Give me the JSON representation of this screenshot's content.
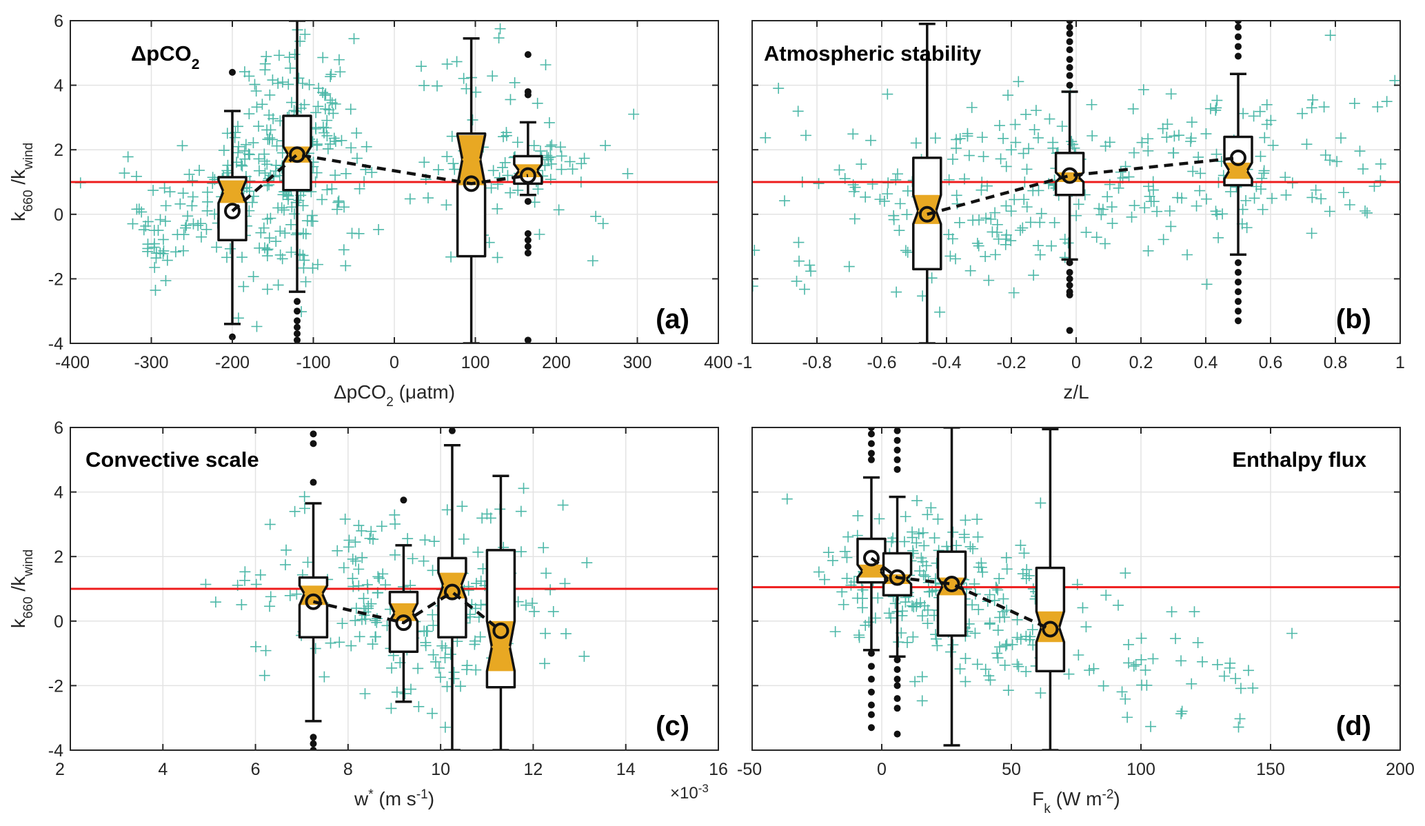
{
  "colors": {
    "scatter": "#4db8a8",
    "reference_line": "#ee1c1c",
    "box_fill": "#e8a823",
    "box_edge": "#111111",
    "grid": "#e3e3e3"
  },
  "chart_data": [
    {
      "type": "scatter+box",
      "panel": "a",
      "title": "ΔpCO",
      "title_sub": "2",
      "letter": "(a)",
      "xlabel": "ΔpCO",
      "xlabel_sub": "2",
      "xlabel_rest": " (μatm)",
      "ylabel": "k",
      "ylabel_sub": "660",
      "ylabel_mid": " /k",
      "ylabel_sub2": "wind",
      "xlim": [
        -400,
        400
      ],
      "ylim": [
        -4,
        6
      ],
      "xticks": [
        -400,
        -300,
        -200,
        -100,
        0,
        100,
        200,
        300,
        400
      ],
      "xtick_labels": [
        "-400",
        "-300",
        "-200",
        "-100",
        "0",
        "100",
        "200",
        "300",
        "400"
      ],
      "yticks": [
        -4,
        -2,
        0,
        2,
        4,
        6
      ],
      "ytick_labels": [
        "-4",
        "-2",
        "0",
        "2",
        "4",
        "6"
      ],
      "reference_y": 1,
      "boxes": [
        {
          "x": -200,
          "whisker_low": -3.4,
          "q1": -0.8,
          "median": 0.7,
          "q3": 1.15,
          "whisker_high": 3.2,
          "notch_low": 0.35,
          "notch_high": 1.05,
          "mean": 0.1,
          "outliers": [
            4.4,
            -3.8
          ]
        },
        {
          "x": -120,
          "whisker_low": -2.4,
          "q1": 0.75,
          "median": 1.85,
          "q3": 3.05,
          "whisker_high": 6.0,
          "notch_low": 1.6,
          "notch_high": 2.1,
          "mean": 1.85,
          "outliers": [
            -2.7,
            -3.0,
            -3.3,
            -3.5,
            -3.7,
            -3.9
          ]
        },
        {
          "x": 95,
          "whisker_low": -4.0,
          "q1": -1.3,
          "median": 1.7,
          "q3": 2.5,
          "whisker_high": 5.45,
          "notch_low": 0.9,
          "notch_high": 2.45,
          "mean": 0.95,
          "outliers": []
        },
        {
          "x": 165,
          "whisker_low": 0.6,
          "q1": 0.95,
          "median": 1.35,
          "q3": 1.8,
          "whisker_high": 2.85,
          "notch_low": 1.15,
          "notch_high": 1.55,
          "mean": 1.2,
          "outliers": [
            4.95,
            3.8,
            3.7,
            0.4,
            -0.6,
            -0.8,
            -1.0,
            -1.2,
            -3.9
          ]
        }
      ],
      "scatter_clusters": [
        {
          "cx": -195,
          "sx": 55,
          "cy": 0.5,
          "sy": 1.3,
          "n": 130
        },
        {
          "cx": -115,
          "sx": 38,
          "cy": 2.0,
          "sy": 1.6,
          "n": 170
        },
        {
          "cx": -300,
          "sx": 15,
          "cy": -0.4,
          "sy": 0.8,
          "n": 25
        },
        {
          "cx": 110,
          "sx": 45,
          "cy": 1.8,
          "sy": 1.8,
          "n": 60
        },
        {
          "cx": 180,
          "sx": 35,
          "cy": 1.3,
          "sy": 0.6,
          "n": 30
        },
        {
          "cx": 270,
          "sx": 20,
          "cy": 1.0,
          "sy": 1.2,
          "n": 6
        }
      ]
    },
    {
      "type": "scatter+box",
      "panel": "b",
      "title": "Atmospheric stability",
      "title_sub": "",
      "letter": "(b)",
      "xlabel": "z/L",
      "xlabel_sub": "",
      "xlabel_rest": "",
      "ylabel": "",
      "ylabel_sub": "",
      "ylabel_mid": "",
      "ylabel_sub2": "",
      "xlim": [
        -1,
        1
      ],
      "ylim": [
        -4,
        6
      ],
      "xticks": [
        -1,
        -0.8,
        -0.6,
        -0.4,
        -0.2,
        0,
        0.2,
        0.4,
        0.6,
        0.8,
        1
      ],
      "xtick_labels": [
        "-1",
        "-0.8",
        "-0.6",
        "-0.4",
        "-0.2",
        "0",
        "0.2",
        "0.4",
        "0.6",
        "0.8",
        "1"
      ],
      "yticks": [
        -4,
        -2,
        0,
        2,
        4,
        6
      ],
      "ytick_labels": [],
      "reference_y": 1,
      "boxes": [
        {
          "x": -0.46,
          "whisker_low": -4.0,
          "q1": -1.7,
          "median": 0.1,
          "q3": 1.75,
          "whisker_high": 5.9,
          "notch_low": -0.3,
          "notch_high": 0.6,
          "mean": 0.0,
          "outliers": []
        },
        {
          "x": -0.02,
          "whisker_low": -1.4,
          "q1": 0.6,
          "median": 1.15,
          "q3": 1.9,
          "whisker_high": 3.8,
          "notch_low": 1.0,
          "notch_high": 1.3,
          "mean": 1.2,
          "outliers": [
            6.0,
            5.8,
            5.6,
            5.35,
            5.1,
            4.8,
            4.55,
            4.3,
            4.0,
            -1.5,
            -1.8,
            -2.0,
            -2.2,
            -2.4,
            -2.5,
            -3.6
          ]
        },
        {
          "x": 0.5,
          "whisker_low": -1.25,
          "q1": 0.9,
          "median": 1.35,
          "q3": 2.4,
          "whisker_high": 4.35,
          "notch_low": 1.1,
          "notch_high": 1.6,
          "mean": 1.75,
          "outliers": [
            6.0,
            5.8,
            5.5,
            5.2,
            4.9,
            -1.5,
            -1.8,
            -2.1,
            -2.4,
            -2.7,
            -3.0,
            -3.3
          ]
        }
      ],
      "scatter_clusters": [
        {
          "cx": -0.35,
          "sx": 0.3,
          "cy": 0.6,
          "sy": 1.5,
          "n": 150
        },
        {
          "cx": 0.2,
          "sx": 0.3,
          "cy": 1.2,
          "sy": 1.3,
          "n": 120
        },
        {
          "cx": 0.75,
          "sx": 0.2,
          "cy": 2.0,
          "sy": 1.5,
          "n": 40
        }
      ]
    },
    {
      "type": "scatter+box",
      "panel": "c",
      "title": "Convective scale",
      "title_sub": "",
      "letter": "(c)",
      "xlabel": "w",
      "xlabel_sub": "",
      "xlabel_rest": " (m s",
      "xlabel_sup": "*",
      "ylabel": "k",
      "ylabel_sub": "660",
      "ylabel_mid": " /k",
      "ylabel_sub2": "wind",
      "xlim": [
        2,
        16
      ],
      "ylim": [
        -4,
        6
      ],
      "xticks": [
        2,
        4,
        6,
        8,
        10,
        12,
        14,
        16
      ],
      "xtick_labels": [
        "2",
        "4",
        "6",
        "8",
        "10",
        "12",
        "14",
        "16"
      ],
      "yticks": [
        -4,
        -2,
        0,
        2,
        4,
        6
      ],
      "ytick_labels": [
        "-4",
        "-2",
        "0",
        "2",
        "4",
        "6"
      ],
      "x_scale_note": "×10",
      "x_scale_exp": "-3",
      "reference_y": 1,
      "boxes": [
        {
          "x": 7.25,
          "whisker_low": -3.1,
          "q1": -0.5,
          "median": 0.85,
          "q3": 1.35,
          "whisker_high": 3.65,
          "notch_low": 0.5,
          "notch_high": 1.1,
          "mean": 0.6,
          "outliers": [
            5.8,
            5.5,
            4.3,
            -3.6,
            -3.8,
            -4.0
          ]
        },
        {
          "x": 9.2,
          "whisker_low": -2.5,
          "q1": -0.95,
          "median": 0.25,
          "q3": 0.9,
          "whisker_high": 2.35,
          "notch_low": 0.0,
          "notch_high": 0.55,
          "mean": -0.05,
          "outliers": [
            3.75
          ]
        },
        {
          "x": 10.25,
          "whisker_low": -4.0,
          "q1": -0.5,
          "median": 1.1,
          "q3": 1.95,
          "whisker_high": 5.45,
          "notch_low": 0.7,
          "notch_high": 1.5,
          "mean": 0.9,
          "outliers": [
            5.9
          ]
        },
        {
          "x": 11.3,
          "whisker_low": -4.0,
          "q1": -2.05,
          "median": -0.8,
          "q3": 2.2,
          "whisker_high": 4.5,
          "notch_low": -1.55,
          "notch_high": 0.0,
          "mean": -0.3,
          "outliers": []
        }
      ],
      "scatter_clusters": [
        {
          "cx": 9.8,
          "sx": 1.3,
          "cy": 0.4,
          "sy": 1.5,
          "n": 160
        },
        {
          "cx": 7.5,
          "sx": 1.0,
          "cy": 1.0,
          "sy": 1.6,
          "n": 40
        },
        {
          "cx": 12.0,
          "sx": 0.6,
          "cy": 1.5,
          "sy": 1.5,
          "n": 12
        },
        {
          "cx": 5.6,
          "sx": 0.3,
          "cy": 1.3,
          "sy": 0.5,
          "n": 4
        }
      ]
    },
    {
      "type": "scatter+box",
      "panel": "d",
      "title": "Enthalpy flux",
      "title_sub": "",
      "letter": "(d)",
      "xlabel": "F",
      "xlabel_sub": "k",
      "xlabel_rest": " (W m",
      "xlabel_sup2": "-2",
      "ylabel": "",
      "ylabel_sub": "",
      "ylabel_mid": "",
      "ylabel_sub2": "",
      "xlim": [
        -50,
        200
      ],
      "ylim": [
        -4,
        6
      ],
      "xticks": [
        -50,
        0,
        50,
        100,
        150,
        200
      ],
      "xtick_labels": [
        "-50",
        "0",
        "50",
        "100",
        "150",
        "200"
      ],
      "yticks": [
        -4,
        -2,
        0,
        2,
        4,
        6
      ],
      "ytick_labels": [],
      "reference_y": 1.05,
      "boxes": [
        {
          "x": -4,
          "whisker_low": -0.9,
          "q1": 1.2,
          "median": 1.55,
          "q3": 2.55,
          "whisker_high": 4.45,
          "notch_low": 1.35,
          "notch_high": 1.75,
          "mean": 1.95,
          "outliers": [
            6.0,
            5.8,
            5.5,
            5.2,
            5.0,
            -1.0,
            -1.4,
            -1.8,
            -2.2,
            -2.6,
            -2.9,
            -3.3
          ]
        },
        {
          "x": 6,
          "whisker_low": -1.1,
          "q1": 0.8,
          "median": 1.3,
          "q3": 2.1,
          "whisker_high": 3.85,
          "notch_low": 1.15,
          "notch_high": 1.45,
          "mean": 1.35,
          "outliers": [
            5.9,
            5.6,
            5.3,
            5.0,
            4.7,
            -1.2,
            -1.5,
            -1.8,
            -2.0,
            -2.4,
            -2.7,
            -3.5
          ]
        },
        {
          "x": 27,
          "whisker_low": -3.85,
          "q1": -0.45,
          "median": 1.1,
          "q3": 2.15,
          "whisker_high": 6.0,
          "notch_low": 0.8,
          "notch_high": 1.35,
          "mean": 1.15,
          "outliers": []
        },
        {
          "x": 65,
          "whisker_low": -4.0,
          "q1": -1.55,
          "median": -0.2,
          "q3": 1.65,
          "whisker_high": 5.95,
          "notch_low": -0.65,
          "notch_high": 0.3,
          "mean": -0.25,
          "outliers": []
        }
      ],
      "scatter_clusters": [
        {
          "cx": 15,
          "sx": 18,
          "cy": 1.2,
          "sy": 1.2,
          "n": 160
        },
        {
          "cx": 50,
          "sx": 20,
          "cy": 0.2,
          "sy": 1.3,
          "n": 80
        },
        {
          "cx": 110,
          "sx": 20,
          "cy": -1.5,
          "sy": 0.9,
          "n": 30
        },
        {
          "cx": 140,
          "sx": 10,
          "cy": -2.5,
          "sy": 1.0,
          "n": 6
        }
      ]
    }
  ]
}
